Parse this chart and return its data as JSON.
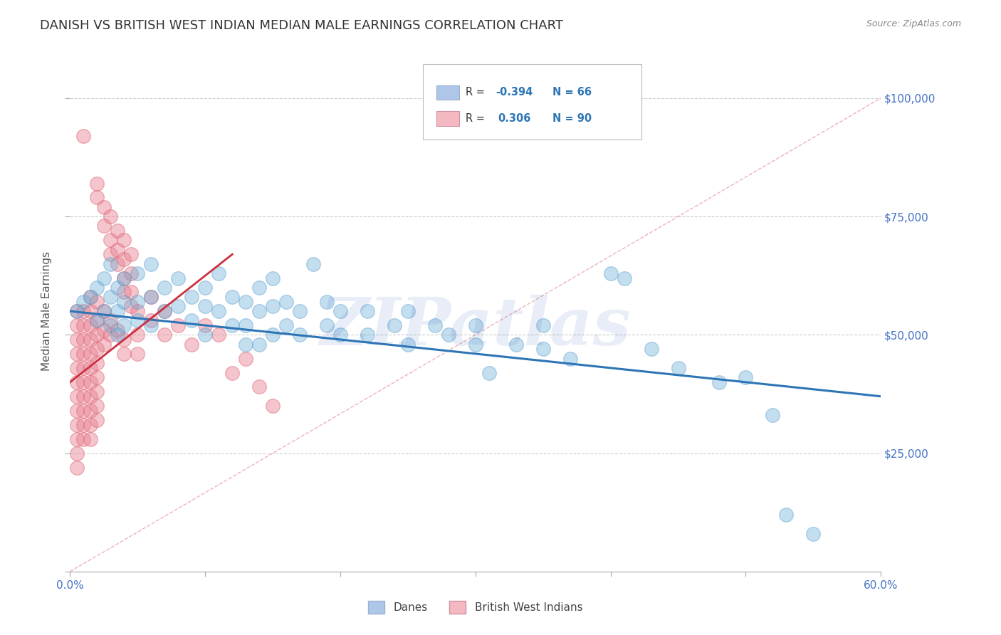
{
  "title": "DANISH VS BRITISH WEST INDIAN MEDIAN MALE EARNINGS CORRELATION CHART",
  "source": "Source: ZipAtlas.com",
  "ylabel": "Median Male Earnings",
  "xlim": [
    0.0,
    0.6
  ],
  "ylim": [
    0,
    110000
  ],
  "yticks": [
    0,
    25000,
    50000,
    75000,
    100000
  ],
  "ytick_labels": [
    "",
    "$25,000",
    "$50,000",
    "$75,000",
    "$100,000"
  ],
  "xticks": [
    0.0,
    0.1,
    0.2,
    0.3,
    0.4,
    0.5,
    0.6
  ],
  "xtick_labels": [
    "0.0%",
    "",
    "",
    "",
    "",
    "",
    "60.0%"
  ],
  "background_color": "#ffffff",
  "grid_color": "#c8c8c8",
  "axis_label_color": "#4472c4",
  "watermark_text": "ZIPatlas",
  "watermark_color": "#4472c4",
  "watermark_alpha": 0.12,
  "legend_color1": "#aec6e8",
  "legend_color2": "#f4b8c1",
  "danes_color": "#6baed6",
  "danes_edge": "#5599cc",
  "bwi_color": "#e88090",
  "bwi_edge": "#dd6070",
  "danes_scatter": [
    [
      0.005,
      55000
    ],
    [
      0.01,
      57000
    ],
    [
      0.015,
      58000
    ],
    [
      0.02,
      60000
    ],
    [
      0.02,
      53000
    ],
    [
      0.025,
      62000
    ],
    [
      0.025,
      55000
    ],
    [
      0.03,
      65000
    ],
    [
      0.03,
      58000
    ],
    [
      0.03,
      52000
    ],
    [
      0.035,
      60000
    ],
    [
      0.035,
      55000
    ],
    [
      0.035,
      50000
    ],
    [
      0.04,
      62000
    ],
    [
      0.04,
      57000
    ],
    [
      0.04,
      52000
    ],
    [
      0.05,
      63000
    ],
    [
      0.05,
      57000
    ],
    [
      0.05,
      53000
    ],
    [
      0.06,
      65000
    ],
    [
      0.06,
      58000
    ],
    [
      0.06,
      52000
    ],
    [
      0.07,
      60000
    ],
    [
      0.07,
      55000
    ],
    [
      0.08,
      62000
    ],
    [
      0.08,
      56000
    ],
    [
      0.09,
      58000
    ],
    [
      0.09,
      53000
    ],
    [
      0.1,
      60000
    ],
    [
      0.1,
      56000
    ],
    [
      0.1,
      50000
    ],
    [
      0.11,
      63000
    ],
    [
      0.11,
      55000
    ],
    [
      0.12,
      58000
    ],
    [
      0.12,
      52000
    ],
    [
      0.13,
      57000
    ],
    [
      0.13,
      52000
    ],
    [
      0.13,
      48000
    ],
    [
      0.14,
      60000
    ],
    [
      0.14,
      55000
    ],
    [
      0.14,
      48000
    ],
    [
      0.15,
      62000
    ],
    [
      0.15,
      56000
    ],
    [
      0.15,
      50000
    ],
    [
      0.16,
      57000
    ],
    [
      0.16,
      52000
    ],
    [
      0.17,
      55000
    ],
    [
      0.17,
      50000
    ],
    [
      0.18,
      65000
    ],
    [
      0.19,
      57000
    ],
    [
      0.19,
      52000
    ],
    [
      0.2,
      55000
    ],
    [
      0.2,
      50000
    ],
    [
      0.22,
      55000
    ],
    [
      0.22,
      50000
    ],
    [
      0.24,
      52000
    ],
    [
      0.25,
      55000
    ],
    [
      0.25,
      48000
    ],
    [
      0.27,
      52000
    ],
    [
      0.28,
      50000
    ],
    [
      0.3,
      52000
    ],
    [
      0.3,
      48000
    ],
    [
      0.31,
      42000
    ],
    [
      0.33,
      48000
    ],
    [
      0.35,
      52000
    ],
    [
      0.35,
      47000
    ],
    [
      0.37,
      45000
    ],
    [
      0.4,
      63000
    ],
    [
      0.41,
      62000
    ],
    [
      0.43,
      47000
    ],
    [
      0.45,
      43000
    ],
    [
      0.48,
      40000
    ],
    [
      0.5,
      41000
    ],
    [
      0.52,
      33000
    ],
    [
      0.53,
      12000
    ],
    [
      0.55,
      8000
    ]
  ],
  "bwi_scatter": [
    [
      0.01,
      92000
    ],
    [
      0.02,
      82000
    ],
    [
      0.02,
      79000
    ],
    [
      0.025,
      77000
    ],
    [
      0.025,
      73000
    ],
    [
      0.03,
      75000
    ],
    [
      0.03,
      70000
    ],
    [
      0.03,
      67000
    ],
    [
      0.035,
      72000
    ],
    [
      0.035,
      68000
    ],
    [
      0.035,
      65000
    ],
    [
      0.04,
      70000
    ],
    [
      0.04,
      66000
    ],
    [
      0.04,
      62000
    ],
    [
      0.04,
      59000
    ],
    [
      0.045,
      67000
    ],
    [
      0.045,
      63000
    ],
    [
      0.045,
      59000
    ],
    [
      0.045,
      56000
    ],
    [
      0.005,
      55000
    ],
    [
      0.005,
      52000
    ],
    [
      0.005,
      49000
    ],
    [
      0.005,
      46000
    ],
    [
      0.005,
      43000
    ],
    [
      0.005,
      40000
    ],
    [
      0.005,
      37000
    ],
    [
      0.005,
      34000
    ],
    [
      0.005,
      31000
    ],
    [
      0.005,
      28000
    ],
    [
      0.005,
      25000
    ],
    [
      0.005,
      22000
    ],
    [
      0.01,
      55000
    ],
    [
      0.01,
      52000
    ],
    [
      0.01,
      49000
    ],
    [
      0.01,
      46000
    ],
    [
      0.01,
      43000
    ],
    [
      0.01,
      40000
    ],
    [
      0.01,
      37000
    ],
    [
      0.01,
      34000
    ],
    [
      0.01,
      31000
    ],
    [
      0.01,
      28000
    ],
    [
      0.015,
      58000
    ],
    [
      0.015,
      55000
    ],
    [
      0.015,
      52000
    ],
    [
      0.015,
      49000
    ],
    [
      0.015,
      46000
    ],
    [
      0.015,
      43000
    ],
    [
      0.015,
      40000
    ],
    [
      0.015,
      37000
    ],
    [
      0.015,
      34000
    ],
    [
      0.015,
      31000
    ],
    [
      0.015,
      28000
    ],
    [
      0.02,
      57000
    ],
    [
      0.02,
      53000
    ],
    [
      0.02,
      50000
    ],
    [
      0.02,
      47000
    ],
    [
      0.02,
      44000
    ],
    [
      0.02,
      41000
    ],
    [
      0.02,
      38000
    ],
    [
      0.02,
      35000
    ],
    [
      0.02,
      32000
    ],
    [
      0.025,
      55000
    ],
    [
      0.025,
      51000
    ],
    [
      0.025,
      48000
    ],
    [
      0.03,
      53000
    ],
    [
      0.03,
      50000
    ],
    [
      0.035,
      51000
    ],
    [
      0.04,
      49000
    ],
    [
      0.04,
      46000
    ],
    [
      0.05,
      55000
    ],
    [
      0.05,
      50000
    ],
    [
      0.05,
      46000
    ],
    [
      0.06,
      58000
    ],
    [
      0.06,
      53000
    ],
    [
      0.07,
      55000
    ],
    [
      0.07,
      50000
    ],
    [
      0.08,
      52000
    ],
    [
      0.09,
      48000
    ],
    [
      0.1,
      52000
    ],
    [
      0.11,
      50000
    ],
    [
      0.12,
      42000
    ],
    [
      0.13,
      45000
    ],
    [
      0.14,
      39000
    ],
    [
      0.15,
      35000
    ]
  ],
  "ref_line_x": [
    0.0,
    0.6
  ],
  "ref_line_y": [
    0,
    100000
  ],
  "blue_line_x": [
    0.0,
    0.6
  ],
  "blue_line_y": [
    55000,
    37000
  ],
  "pink_line_x": [
    0.0,
    0.12
  ],
  "pink_line_y": [
    40000,
    67000
  ]
}
